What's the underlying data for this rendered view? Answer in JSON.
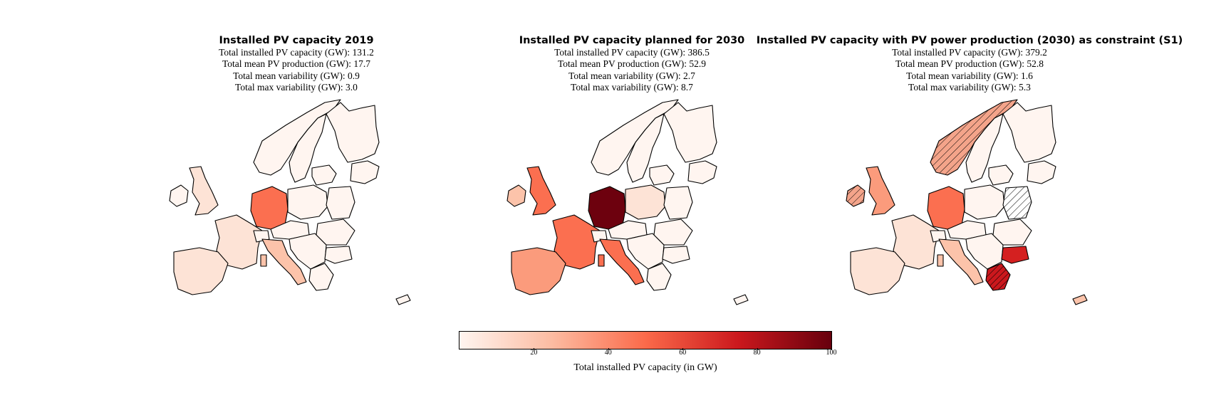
{
  "panels": [
    {
      "title": "Installed PV capacity 2019",
      "stats": [
        "Total installed PV capacity (GW): 131.2",
        "Total mean PV production (GW): 17.7",
        "Total mean variability (GW): 0.9",
        "Total max variability (GW): 3.0"
      ]
    },
    {
      "title": "Installed PV capacity planned for 2030",
      "stats": [
        "Total installed PV capacity (GW): 386.5",
        "Total mean PV production (GW): 52.9",
        "Total mean variability (GW): 2.7",
        "Total max variability (GW): 8.7"
      ]
    },
    {
      "title": "Installed PV capacity with PV power production (2030) as constraint (S1)",
      "stats": [
        "Total installed PV capacity (GW): 379.2",
        "Total mean PV production (GW): 52.8",
        "Total mean variability (GW): 1.6",
        "Total max variability (GW): 5.3"
      ]
    }
  ],
  "colorbar": {
    "label": "Total installed PV capacity (in GW)",
    "ticks": [
      "20",
      "40",
      "60",
      "80",
      "100"
    ],
    "range": [
      0,
      100
    ],
    "colormap": [
      "#fff5f0",
      "#fcbba1",
      "#fb6a4a",
      "#cb181d",
      "#67000d"
    ]
  },
  "map_colors": {
    "very_low": "#fff5f0",
    "low": "#fde3d6",
    "light": "#fcc3aa",
    "medium": "#fb9b7c",
    "orange_red": "#fb6f50",
    "red": "#d42020",
    "dark": "#6d010e",
    "hatched": "#f4a48a"
  }
}
